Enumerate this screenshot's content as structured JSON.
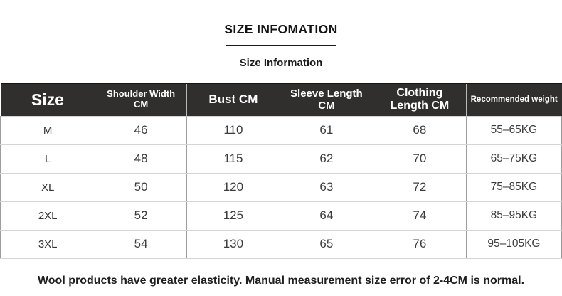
{
  "header": {
    "title": "SIZE INFOMATION",
    "subtitle": "Size Information"
  },
  "table": {
    "columns": [
      "Size",
      "Shoulder Width CM",
      "Bust CM",
      "Sleeve Length CM",
      "Clothing Length CM",
      "Recommended weight"
    ],
    "rows": [
      [
        "M",
        "46",
        "110",
        "61",
        "68",
        "55–65KG"
      ],
      [
        "L",
        "48",
        "115",
        "62",
        "70",
        "65–75KG"
      ],
      [
        "XL",
        "50",
        "120",
        "63",
        "72",
        "75–85KG"
      ],
      [
        "2XL",
        "52",
        "125",
        "64",
        "74",
        "85–95KG"
      ],
      [
        "3XL",
        "54",
        "130",
        "65",
        "76",
        "95–105KG"
      ]
    ]
  },
  "footer": {
    "note": "Wool products have greater elasticity. Manual measurement size error of 2-4CM is normal."
  },
  "colors": {
    "header_bg": "#312e2e",
    "header_text": "#ffffff",
    "grid_vertical": "#9c9c9c",
    "grid_horizontal": "#d5d5d5",
    "title_underline": "#1b1b1b",
    "body_text": "#3c3c3c"
  }
}
